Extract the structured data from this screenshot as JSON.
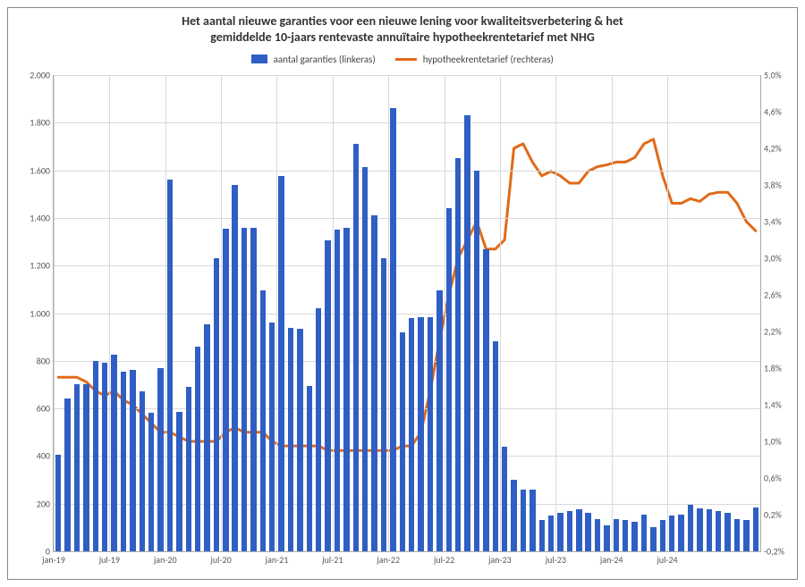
{
  "title_line1": "Het aantal nieuwe garanties voor een nieuwe lening voor kwaliteitsverbetering & het",
  "title_line2": "gemiddelde 10-jaars rentevaste annuïtaire hypotheekrentetarief met NHG",
  "legend": {
    "bars_label": "aantal garanties (linkeras)",
    "line_label": "hypotheekrentetarief (rechteras)"
  },
  "colors": {
    "bar": "#2f5fc4",
    "line": "#e06a1a",
    "grid": "#d9d9d9",
    "text": "#444444",
    "background": "#ffffff"
  },
  "y_left": {
    "min": 0,
    "max": 2000,
    "ticks": [
      0,
      200,
      400,
      600,
      800,
      1000,
      1200,
      1400,
      1600,
      1800,
      2000
    ],
    "tick_labels": [
      "0",
      "200",
      "400",
      "600",
      "800",
      "1.000",
      "1.200",
      "1.400",
      "1.600",
      "1.800",
      "2.000"
    ]
  },
  "y_right": {
    "min": -0.2,
    "max": 5.0,
    "ticks": [
      -0.2,
      0.2,
      0.6,
      1.0,
      1.4,
      1.8,
      2.2,
      2.6,
      3.0,
      3.4,
      3.8,
      4.2,
      4.6,
      5.0
    ],
    "tick_labels": [
      "-0,2%",
      "0,2%",
      "0,6%",
      "1,0%",
      "1,4%",
      "1,8%",
      "2,2%",
      "2,6%",
      "3,0%",
      "3,4%",
      "3,8%",
      "4,2%",
      "4,6%",
      "5,0%"
    ]
  },
  "x_ticks": {
    "positions": [
      0,
      6,
      12,
      18,
      24,
      30,
      36,
      42,
      48,
      54,
      60,
      66
    ],
    "labels": [
      "jan-19",
      "jul-19",
      "jan-20",
      "jul-20",
      "jan-21",
      "jul-21",
      "jan-22",
      "jul-22",
      "jan-23",
      "jul-23",
      "jan-24",
      "jul-24"
    ]
  },
  "bars": [
    405,
    640,
    700,
    700,
    800,
    790,
    825,
    755,
    760,
    670,
    580,
    770,
    1560,
    585,
    690,
    860,
    955,
    1230,
    1355,
    1540,
    1360,
    1360,
    1095,
    960,
    1575,
    940,
    935,
    695,
    1020,
    1305,
    1350,
    1360,
    1710,
    1615,
    1410,
    1230,
    1860,
    920,
    980,
    985,
    985,
    1095,
    1440,
    1650,
    1830,
    1600,
    1270,
    880,
    440,
    300,
    260,
    260,
    130,
    150,
    160,
    170,
    175,
    160,
    135,
    110,
    135,
    130,
    125,
    155,
    100,
    130,
    150,
    155,
    195,
    180,
    175,
    170,
    160,
    135,
    130,
    185
  ],
  "line": [
    1.7,
    1.7,
    1.7,
    1.65,
    1.55,
    1.5,
    1.55,
    1.45,
    1.4,
    1.3,
    1.2,
    1.1,
    1.1,
    1.05,
    1.0,
    1.0,
    1.0,
    1.0,
    1.1,
    1.15,
    1.1,
    1.1,
    1.1,
    1.0,
    0.95,
    0.95,
    0.95,
    0.95,
    0.95,
    0.9,
    0.9,
    0.9,
    0.9,
    0.9,
    0.9,
    0.9,
    0.9,
    0.95,
    0.95,
    1.1,
    1.55,
    2.1,
    2.6,
    3.0,
    3.2,
    3.4,
    3.1,
    3.1,
    3.2,
    4.2,
    4.25,
    4.05,
    3.9,
    3.95,
    3.9,
    3.82,
    3.82,
    3.95,
    4.0,
    4.02,
    4.05,
    4.05,
    4.1,
    4.25,
    4.3,
    3.9,
    3.6,
    3.6,
    3.65,
    3.62,
    3.7,
    3.72,
    3.72,
    3.6,
    3.4,
    3.3
  ],
  "style": {
    "title_fontsize": 14,
    "legend_fontsize": 11,
    "axis_fontsize": 10,
    "line_width": 3,
    "bar_width_ratio": 0.62
  }
}
